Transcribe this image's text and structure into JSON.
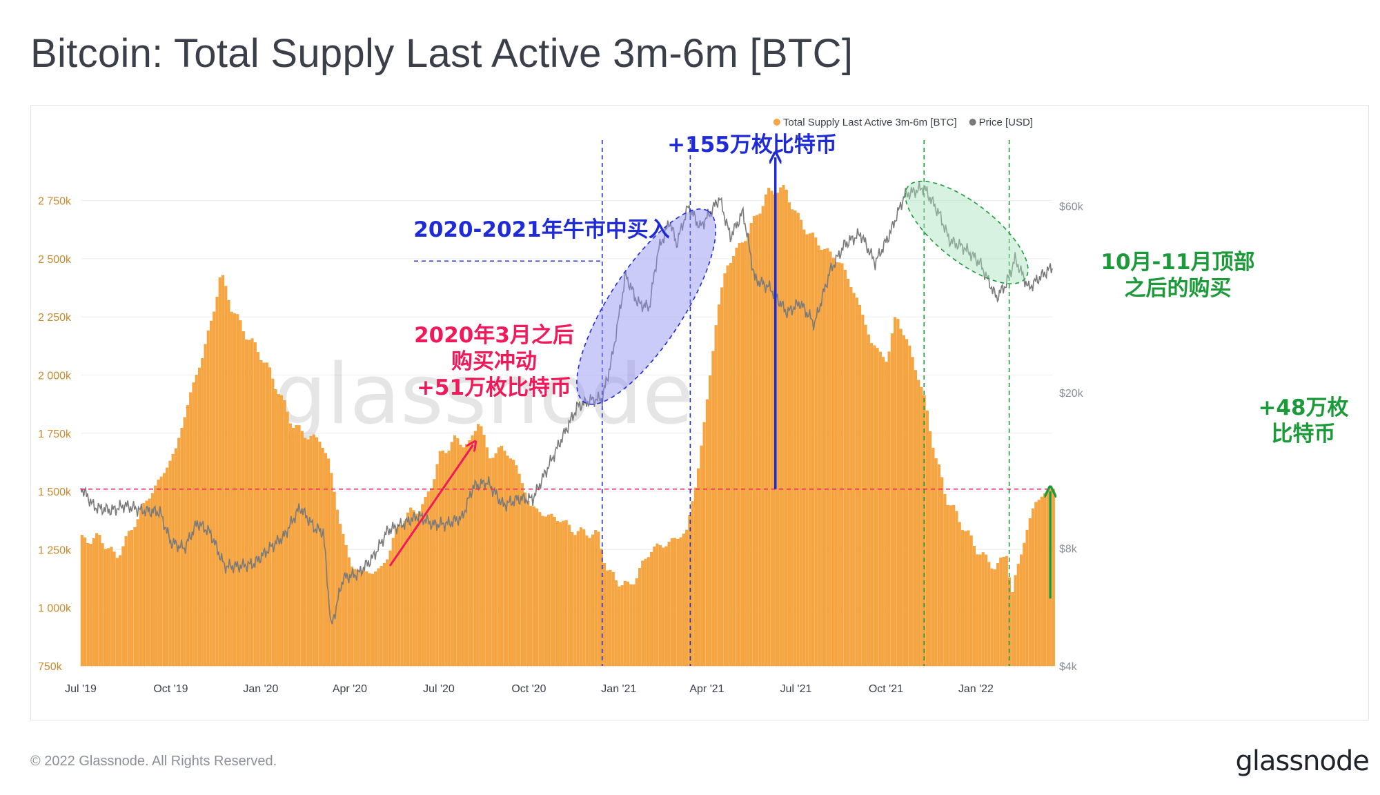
{
  "header": {
    "title": "Bitcoin: Total Supply Last Active 3m-6m [BTC]"
  },
  "footer": {
    "copyright": "© 2022 Glassnode. All Rights Reserved.",
    "brand": "glassnode"
  },
  "watermark": "glassnode",
  "colors": {
    "supply": "#f7a541",
    "supply_edge": "#ee9a30",
    "price": "#7a7a7a",
    "ytick_left": "#c98a2e",
    "ytick_right": "#8a8f98",
    "blue": "#1f2bd6",
    "pink": "#f0195a",
    "green": "#1c9a3a",
    "grid": "#eeeeee"
  },
  "chart_data": {
    "type": "bar",
    "legend": [
      {
        "name": "Total Supply Last Active 3m-6m [BTC]",
        "color": "#f7a541"
      },
      {
        "name": "Price [USD]",
        "color": "#7a7a7a"
      }
    ],
    "legend_position": "top-right",
    "x_ticks": [
      {
        "label": "Jul '19",
        "date": "2019-07-01"
      },
      {
        "label": "Oct '19",
        "date": "2019-10-01"
      },
      {
        "label": "Jan '20",
        "date": "2020-01-01"
      },
      {
        "label": "Apr '20",
        "date": "2020-04-01"
      },
      {
        "label": "Jul '20",
        "date": "2020-07-01"
      },
      {
        "label": "Oct '20",
        "date": "2020-10-01"
      },
      {
        "label": "Jan '21",
        "date": "2021-01-01"
      },
      {
        "label": "Apr '21",
        "date": "2021-04-01"
      },
      {
        "label": "Jul '21",
        "date": "2021-07-01"
      },
      {
        "label": "Oct '21",
        "date": "2021-10-01"
      },
      {
        "label": "Jan '22",
        "date": "2022-01-01"
      }
    ],
    "x_range": [
      "2019-07-01",
      "2022-03-20"
    ],
    "y_left": {
      "range": [
        750000,
        2980000
      ],
      "ticks": [
        {
          "label": "750k",
          "value": 750000
        },
        {
          "label": "1 000k",
          "value": 1000000
        },
        {
          "label": "1 250k",
          "value": 1250000
        },
        {
          "label": "1 500k",
          "value": 1500000
        },
        {
          "label": "1 750k",
          "value": 1750000
        },
        {
          "label": "2 000k",
          "value": 2000000
        },
        {
          "label": "2 250k",
          "value": 2250000
        },
        {
          "label": "2 500k",
          "value": 2500000
        },
        {
          "label": "2 750k",
          "value": 2750000
        }
      ]
    },
    "y_right": {
      "scale": "log",
      "range": [
        4000,
        85000
      ],
      "ticks": [
        {
          "label": "$4k",
          "value": 4000
        },
        {
          "label": "$8k",
          "value": 8000
        },
        {
          "label": "$20k",
          "value": 20000
        },
        {
          "label": "$60k",
          "value": 60000
        }
      ]
    },
    "supply_series": [
      [
        "2019-07-01",
        1290000
      ],
      [
        "2019-07-20",
        1300000
      ],
      [
        "2019-08-05",
        1215000
      ],
      [
        "2019-08-20",
        1330000
      ],
      [
        "2019-09-05",
        1460000
      ],
      [
        "2019-09-20",
        1560000
      ],
      [
        "2019-10-05",
        1680000
      ],
      [
        "2019-10-20",
        1920000
      ],
      [
        "2019-11-01",
        2080000
      ],
      [
        "2019-11-12",
        2260000
      ],
      [
        "2019-11-20",
        2440000
      ],
      [
        "2019-12-01",
        2290000
      ],
      [
        "2019-12-15",
        2180000
      ],
      [
        "2020-01-01",
        2080000
      ],
      [
        "2020-01-15",
        1960000
      ],
      [
        "2020-02-01",
        1790000
      ],
      [
        "2020-02-15",
        1740000
      ],
      [
        "2020-03-01",
        1720000
      ],
      [
        "2020-03-10",
        1620000
      ],
      [
        "2020-03-20",
        1380000
      ],
      [
        "2020-04-01",
        1180000
      ],
      [
        "2020-04-15",
        1150000
      ],
      [
        "2020-05-01",
        1160000
      ],
      [
        "2020-05-10",
        1240000
      ],
      [
        "2020-05-20",
        1360000
      ],
      [
        "2020-06-01",
        1410000
      ],
      [
        "2020-06-15",
        1440000
      ],
      [
        "2020-07-01",
        1650000
      ],
      [
        "2020-07-15",
        1720000
      ],
      [
        "2020-08-01",
        1700000
      ],
      [
        "2020-08-10",
        1820000
      ],
      [
        "2020-08-20",
        1640000
      ],
      [
        "2020-09-01",
        1690000
      ],
      [
        "2020-09-15",
        1630000
      ],
      [
        "2020-10-01",
        1440000
      ],
      [
        "2020-10-15",
        1400000
      ],
      [
        "2020-11-01",
        1380000
      ],
      [
        "2020-11-15",
        1330000
      ],
      [
        "2020-12-01",
        1320000
      ],
      [
        "2020-12-10",
        1310000
      ],
      [
        "2020-12-20",
        1150000
      ],
      [
        "2021-01-01",
        1110000
      ],
      [
        "2021-01-10",
        1090000
      ],
      [
        "2021-01-20",
        1150000
      ],
      [
        "2021-02-01",
        1250000
      ],
      [
        "2021-02-15",
        1270000
      ],
      [
        "2021-03-01",
        1300000
      ],
      [
        "2021-03-10",
        1330000
      ],
      [
        "2021-03-20",
        1540000
      ],
      [
        "2021-04-01",
        1920000
      ],
      [
        "2021-04-10",
        2260000
      ],
      [
        "2021-04-20",
        2470000
      ],
      [
        "2021-05-01",
        2540000
      ],
      [
        "2021-05-10",
        2600000
      ],
      [
        "2021-05-20",
        2680000
      ],
      [
        "2021-06-01",
        2780000
      ],
      [
        "2021-06-10",
        2800000
      ],
      [
        "2021-06-20",
        2790000
      ],
      [
        "2021-07-01",
        2680000
      ],
      [
        "2021-07-15",
        2600000
      ],
      [
        "2021-08-01",
        2530000
      ],
      [
        "2021-08-15",
        2480000
      ],
      [
        "2021-09-01",
        2320000
      ],
      [
        "2021-09-15",
        2140000
      ],
      [
        "2021-10-01",
        2060000
      ],
      [
        "2021-10-10",
        2260000
      ],
      [
        "2021-10-20",
        2160000
      ],
      [
        "2021-11-01",
        2010000
      ],
      [
        "2021-11-10",
        1860000
      ],
      [
        "2021-11-20",
        1640000
      ],
      [
        "2021-12-01",
        1470000
      ],
      [
        "2021-12-15",
        1370000
      ],
      [
        "2022-01-01",
        1250000
      ],
      [
        "2022-01-10",
        1210000
      ],
      [
        "2022-01-20",
        1170000
      ],
      [
        "2022-02-01",
        1240000
      ],
      [
        "2022-02-05",
        1040000
      ],
      [
        "2022-02-10",
        1150000
      ],
      [
        "2022-02-20",
        1320000
      ],
      [
        "2022-03-01",
        1450000
      ],
      [
        "2022-03-10",
        1490000
      ],
      [
        "2022-03-20",
        1510000
      ]
    ],
    "price_series": [
      [
        "2019-07-01",
        11500
      ],
      [
        "2019-07-15",
        10200
      ],
      [
        "2019-08-01",
        10000
      ],
      [
        "2019-08-15",
        10300
      ],
      [
        "2019-09-01",
        10000
      ],
      [
        "2019-09-20",
        9900
      ],
      [
        "2019-10-01",
        8300
      ],
      [
        "2019-10-15",
        8000
      ],
      [
        "2019-10-28",
        9300
      ],
      [
        "2019-11-10",
        8800
      ],
      [
        "2019-11-25",
        7200
      ],
      [
        "2019-12-10",
        7200
      ],
      [
        "2019-12-25",
        7300
      ],
      [
        "2020-01-10",
        8000
      ],
      [
        "2020-01-25",
        8600
      ],
      [
        "2020-02-10",
        10200
      ],
      [
        "2020-02-25",
        9000
      ],
      [
        "2020-03-05",
        8800
      ],
      [
        "2020-03-13",
        5000
      ],
      [
        "2020-03-25",
        6700
      ],
      [
        "2020-04-10",
        6900
      ],
      [
        "2020-04-25",
        7600
      ],
      [
        "2020-05-10",
        8900
      ],
      [
        "2020-05-25",
        9200
      ],
      [
        "2020-06-10",
        9700
      ],
      [
        "2020-06-25",
        9200
      ],
      [
        "2020-07-10",
        9250
      ],
      [
        "2020-07-25",
        9600
      ],
      [
        "2020-08-05",
        11500
      ],
      [
        "2020-08-20",
        11800
      ],
      [
        "2020-09-05",
        10300
      ],
      [
        "2020-09-20",
        10700
      ],
      [
        "2020-10-05",
        10700
      ],
      [
        "2020-10-20",
        12800
      ],
      [
        "2020-11-05",
        15500
      ],
      [
        "2020-11-20",
        18500
      ],
      [
        "2020-12-05",
        19200
      ],
      [
        "2020-12-15",
        19300
      ],
      [
        "2020-12-25",
        24500
      ],
      [
        "2021-01-08",
        40000
      ],
      [
        "2021-01-20",
        34000
      ],
      [
        "2021-02-01",
        33000
      ],
      [
        "2021-02-10",
        46000
      ],
      [
        "2021-02-22",
        55000
      ],
      [
        "2021-03-01",
        48000
      ],
      [
        "2021-03-13",
        60000
      ],
      [
        "2021-03-25",
        53000
      ],
      [
        "2021-04-05",
        58000
      ],
      [
        "2021-04-14",
        63000
      ],
      [
        "2021-04-25",
        50000
      ],
      [
        "2021-05-08",
        58000
      ],
      [
        "2021-05-20",
        39000
      ],
      [
        "2021-06-05",
        37000
      ],
      [
        "2021-06-22",
        32000
      ],
      [
        "2021-07-05",
        34000
      ],
      [
        "2021-07-20",
        30000
      ],
      [
        "2021-08-05",
        41000
      ],
      [
        "2021-08-20",
        48000
      ],
      [
        "2021-09-05",
        51000
      ],
      [
        "2021-09-20",
        43000
      ],
      [
        "2021-10-05",
        51000
      ],
      [
        "2021-10-20",
        64000
      ],
      [
        "2021-11-09",
        67000
      ],
      [
        "2021-11-25",
        57000
      ],
      [
        "2021-12-05",
        49000
      ],
      [
        "2021-12-20",
        47000
      ],
      [
        "2022-01-05",
        43000
      ],
      [
        "2022-01-22",
        35000
      ],
      [
        "2022-02-01",
        38000
      ],
      [
        "2022-02-10",
        44000
      ],
      [
        "2022-02-24",
        37000
      ],
      [
        "2022-03-05",
        39000
      ],
      [
        "2022-03-20",
        42000
      ]
    ],
    "reference_line": {
      "value": 1510000,
      "color": "#f0195a"
    },
    "annotations": [
      {
        "id": "bull-buy",
        "lines": [
          "2020-2021年牛市中买入"
        ],
        "color": "#1f2bd6"
      },
      {
        "id": "bull-gain",
        "lines": [
          "+155万枚比特币"
        ],
        "color": "#1f2bd6"
      },
      {
        "id": "march-buy",
        "lines": [
          "2020年3月之后",
          "购买冲动",
          "+51万枚比特币"
        ],
        "color": "#f0195a"
      },
      {
        "id": "top-buy",
        "lines": [
          "10月-11月顶部",
          "之后的购买"
        ],
        "color": "#1c9a3a"
      },
      {
        "id": "recent-gain",
        "lines": [
          "+48万枚",
          "比特币"
        ],
        "color": "#1c9a3a"
      }
    ],
    "highlight_windows": [
      {
        "id": "bull-window",
        "start": "2020-12-15",
        "end": "2021-03-15",
        "color": "#1f2bd6"
      },
      {
        "id": "top-window",
        "start": "2021-11-09",
        "end": "2022-02-04",
        "color": "#1c9a3a"
      }
    ]
  }
}
